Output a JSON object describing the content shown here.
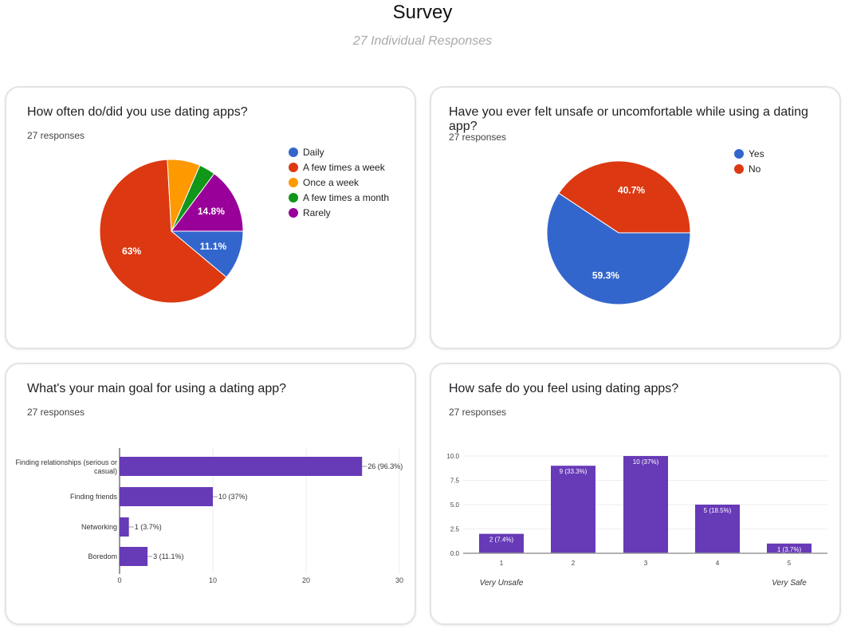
{
  "header": {
    "title": "Survey",
    "subtitle": "27 Individual Responses"
  },
  "chart_data": [
    {
      "type": "pie",
      "title": "How often do/did you use dating apps?",
      "responses": "27 responses",
      "labels": [
        "Daily",
        "A few times a week",
        "Once a week",
        "A few times a month",
        "Rarely"
      ],
      "values": [
        11.1,
        63,
        7.4,
        3.7,
        14.8
      ],
      "data_labels": [
        "11.1%",
        "63%",
        "",
        "",
        "14.8%"
      ],
      "colors": [
        "#3366cc",
        "#dc3912",
        "#ff9900",
        "#109618",
        "#990099"
      ]
    },
    {
      "type": "pie",
      "title": "Have you ever felt unsafe or uncomfortable while using a dating app?",
      "responses": "27 responses",
      "labels": [
        "Yes",
        "No"
      ],
      "values": [
        59.3,
        40.7
      ],
      "data_labels": [
        "59.3%",
        "40.7%"
      ],
      "colors": [
        "#3366cc",
        "#dc3912"
      ]
    },
    {
      "type": "bar",
      "orientation": "horizontal",
      "title": "What's your main goal for using a dating app?",
      "responses": "27 responses",
      "categories": [
        "Finding relationships (serious or casual)",
        "Finding friends",
        "Networking",
        "Boredom"
      ],
      "values": [
        26,
        10,
        1,
        3
      ],
      "data_labels": [
        "26 (96.3%)",
        "10 (37%)",
        "1 (3.7%)",
        "3 (11.1%)"
      ],
      "xlim": [
        0,
        30
      ],
      "xticks": [
        "0",
        "10",
        "20",
        "30"
      ],
      "color": "#673ab7"
    },
    {
      "type": "bar",
      "title": "How safe do you feel using dating apps?",
      "responses": "27 responses",
      "categories": [
        "1",
        "2",
        "3",
        "4",
        "5"
      ],
      "values": [
        2,
        9,
        10,
        5,
        1
      ],
      "data_labels": [
        "2 (7.4%)",
        "9 (33.3%)",
        "10 (37%)",
        "5 (18.5%)",
        "1 (3.7%)"
      ],
      "ylim": [
        0,
        10
      ],
      "yticks": [
        "0.0",
        "2.5",
        "5.0",
        "7.5",
        "10.0"
      ],
      "scale_labels": [
        "Very Unsafe",
        "Very Safe"
      ],
      "color": "#673ab7"
    }
  ]
}
